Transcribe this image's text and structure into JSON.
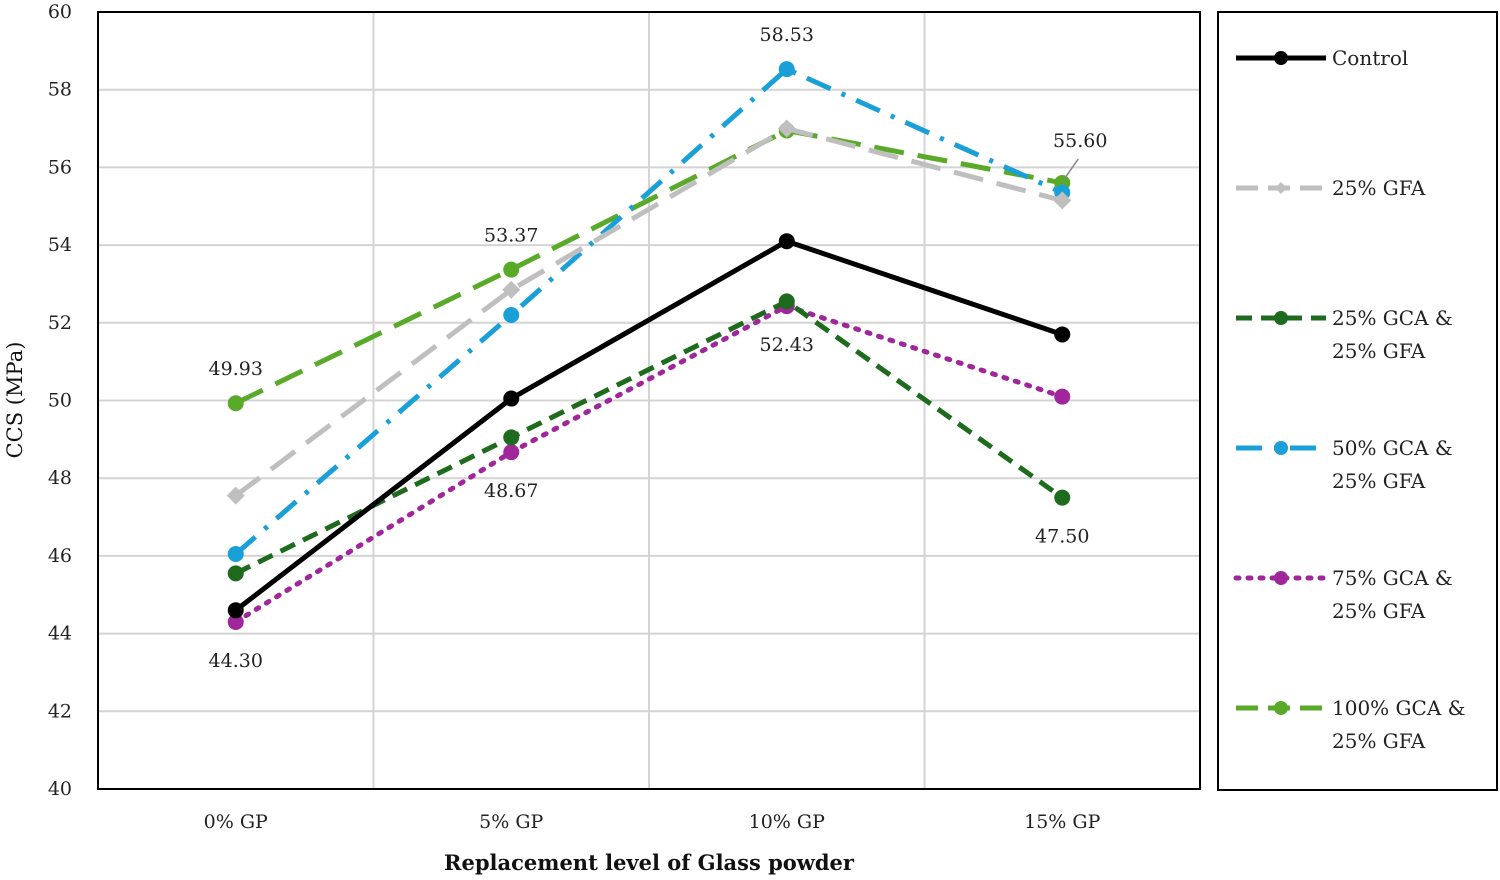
{
  "chart_data": {
    "type": "line",
    "title": "",
    "xlabel": "Replacement level of Glass powder",
    "ylabel": "CCS (MPa)",
    "categories": [
      "0% GP",
      "5% GP",
      "10% GP",
      "15% GP"
    ],
    "ylim": [
      40,
      60
    ],
    "yticks": [
      40,
      42,
      44,
      46,
      48,
      50,
      52,
      54,
      56,
      58,
      60
    ],
    "grid": true,
    "legend_position": "right",
    "series": [
      {
        "name": "Control",
        "legend_lines": [
          "Control"
        ],
        "color": "#000000",
        "dash": "solid",
        "values": [
          44.6,
          50.05,
          54.1,
          51.7
        ]
      },
      {
        "name": "25% GFA",
        "legend_lines": [
          "25% GFA"
        ],
        "color": "#bfbfbf",
        "dash": "longdash",
        "values": [
          47.55,
          52.85,
          57.0,
          55.15
        ]
      },
      {
        "name": "25% GCA & 25% GFA",
        "legend_lines": [
          "25% GCA &",
          "25% GFA"
        ],
        "color": "#1e6b1e",
        "dash": "dash",
        "values": [
          45.55,
          49.05,
          52.55,
          47.5
        ]
      },
      {
        "name": "50% GCA & 25% GFA",
        "legend_lines": [
          "50% GCA &",
          "25% GFA"
        ],
        "color": "#1aa0d8",
        "dash": "dashdot",
        "values": [
          46.05,
          52.2,
          58.53,
          55.35
        ]
      },
      {
        "name": "75% GCA & 25% GFA",
        "legend_lines": [
          "75% GCA &",
          "25% GFA"
        ],
        "color": "#a0269c",
        "dash": "dot",
        "values": [
          44.3,
          48.67,
          52.43,
          50.1
        ]
      },
      {
        "name": "100% GCA & 25% GFA",
        "legend_lines": [
          "100% GCA &",
          "25% GFA"
        ],
        "color": "#5aaa2a",
        "dash": "longdash",
        "values": [
          49.93,
          53.37,
          56.95,
          55.6
        ]
      }
    ],
    "annotations": [
      {
        "text": "49.93",
        "category": "0% GP",
        "value": 49.93,
        "placement": "above"
      },
      {
        "text": "44.30",
        "category": "0% GP",
        "value": 44.3,
        "placement": "below"
      },
      {
        "text": "53.37",
        "category": "5% GP",
        "value": 53.37,
        "placement": "above"
      },
      {
        "text": "48.67",
        "category": "5% GP",
        "value": 48.67,
        "placement": "below"
      },
      {
        "text": "58.53",
        "category": "10% GP",
        "value": 58.53,
        "placement": "above"
      },
      {
        "text": "52.43",
        "category": "10% GP",
        "value": 52.43,
        "placement": "below"
      },
      {
        "text": "55.60",
        "category": "15% GP",
        "value": 55.6,
        "placement": "above-right"
      },
      {
        "text": "47.50",
        "category": "15% GP",
        "value": 47.5,
        "placement": "below"
      }
    ]
  }
}
